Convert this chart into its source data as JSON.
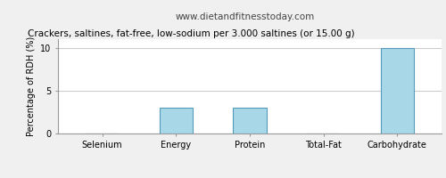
{
  "title": "Crackers, saltines, fat-free, low-sodium per 3.000 saltines (or 15.00 g)",
  "subtitle": "www.dietandfitnesstoday.com",
  "categories": [
    "Selenium",
    "Energy",
    "Protein",
    "Total-Fat",
    "Carbohydrate"
  ],
  "values": [
    0.0,
    3.0,
    3.0,
    0.05,
    10.0
  ],
  "bar_color": "#a8d8e8",
  "bar_edge_color": "#5599bb",
  "ylabel": "Percentage of RDH (%)",
  "ylim": [
    0,
    11
  ],
  "yticks": [
    0,
    5,
    10
  ],
  "bg_color": "#f0f0f0",
  "plot_bg_color": "#ffffff",
  "title_fontsize": 7.5,
  "subtitle_fontsize": 7.5,
  "ylabel_fontsize": 7,
  "tick_fontsize": 7,
  "grid_color": "#cccccc",
  "grid_linewidth": 0.8
}
